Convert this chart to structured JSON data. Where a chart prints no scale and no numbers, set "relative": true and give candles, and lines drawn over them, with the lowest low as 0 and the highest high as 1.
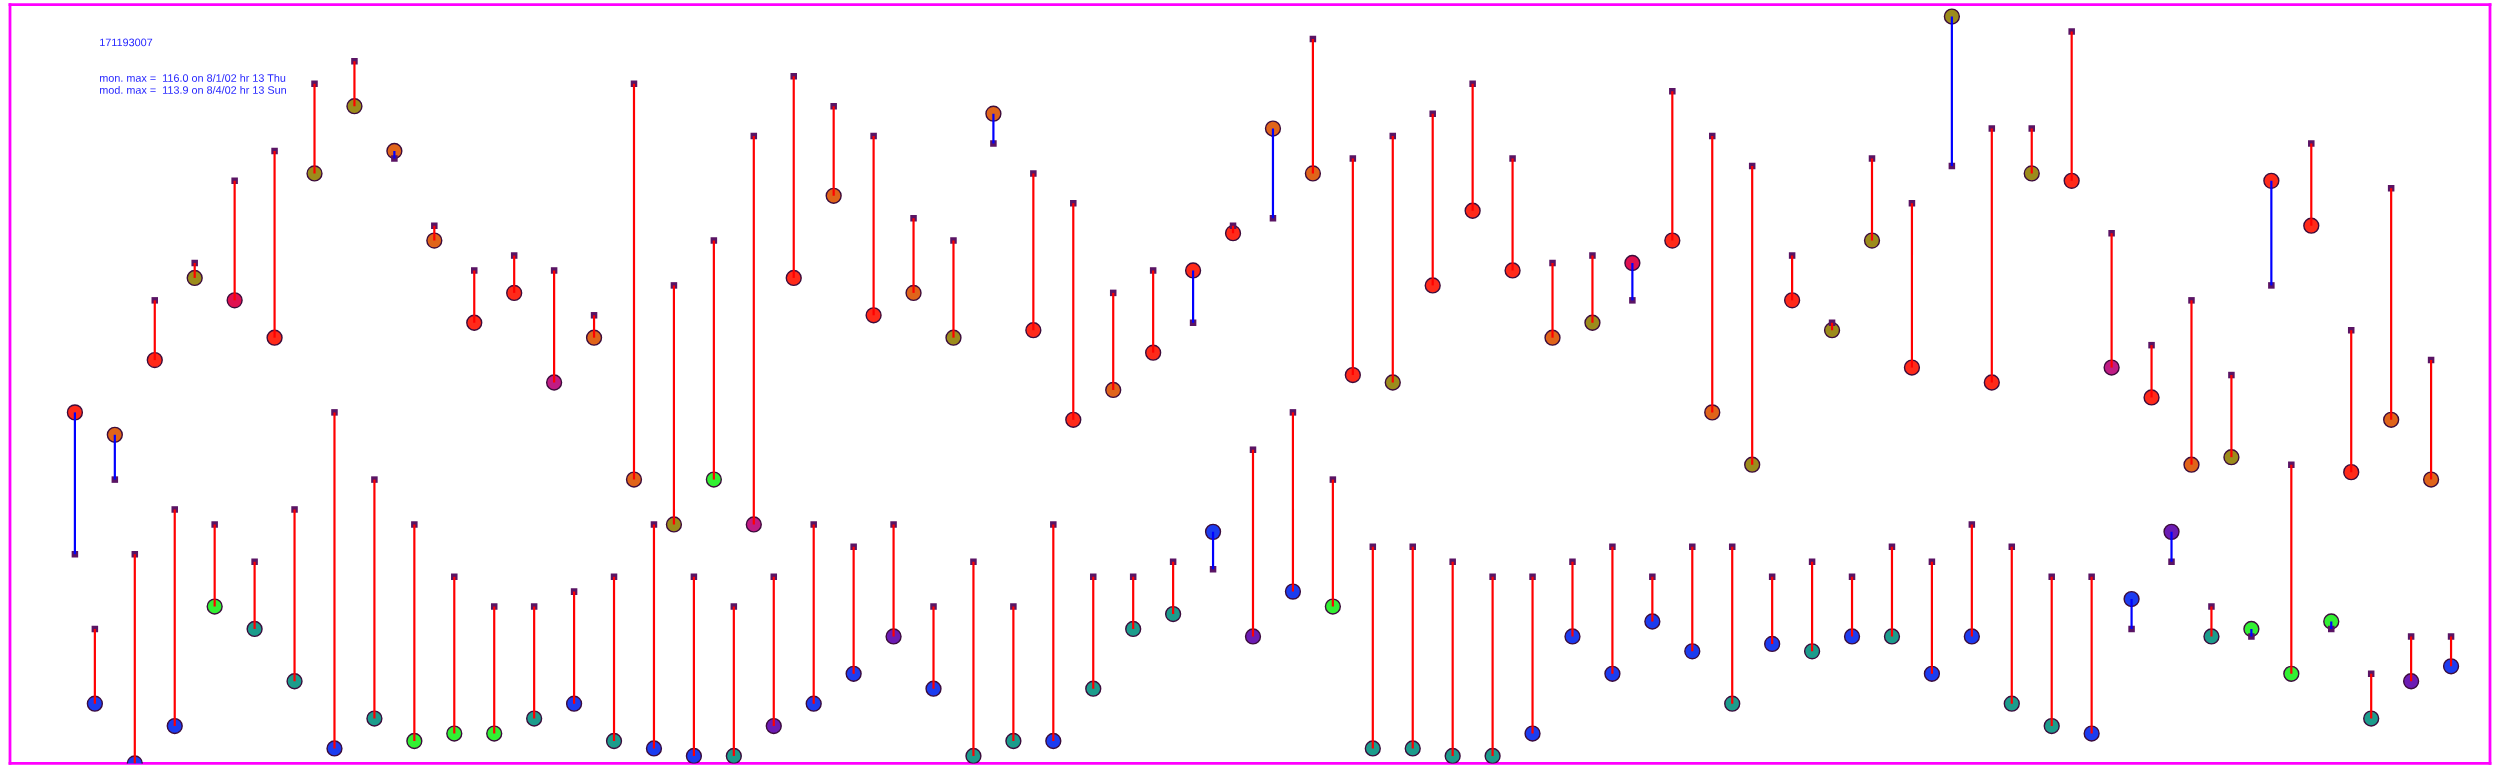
{
  "chart_data": {
    "type": "candlestick",
    "title": "171193007",
    "annotations": [
      "mon. max =  116.0 on 8/1/02 hr 13 Thu",
      "mod. max =  113.9 on 8/4/02 hr 13 Sun"
    ],
    "relative": true,
    "categories": [
      null,
      null,
      null,
      null,
      null,
      null,
      null,
      null,
      null,
      null,
      null,
      null,
      null,
      null,
      null,
      null,
      null,
      null,
      null,
      null,
      null,
      null,
      null,
      null,
      null,
      null,
      null,
      null,
      null,
      null,
      null,
      null,
      null,
      null,
      null,
      null,
      null,
      null,
      null,
      null,
      null,
      null,
      null,
      null,
      null,
      null,
      null,
      null,
      null,
      null,
      null,
      null,
      null,
      null,
      null,
      null,
      null,
      null,
      null,
      null,
      null,
      null,
      null,
      null,
      null,
      null,
      null,
      null,
      null,
      null,
      null,
      null,
      null,
      null,
      null,
      null,
      null,
      null,
      null,
      null,
      null,
      null,
      null,
      null,
      null,
      null,
      null,
      null,
      null,
      null,
      null,
      null,
      null,
      null,
      null,
      null,
      null,
      null,
      null,
      null,
      null,
      null,
      null,
      null,
      null,
      null,
      null,
      null,
      null,
      null,
      null,
      null,
      null,
      null,
      null,
      null,
      null,
      null,
      null,
      null
    ],
    "ohlc": [
      [
        0.47,
        0.47,
        0.28,
        0.28
      ],
      [
        0.08,
        0.18,
        0.08,
        0.18
      ],
      [
        0.44,
        0.44,
        0.38,
        0.38
      ],
      [
        0,
        0.28,
        0,
        0.28
      ],
      [
        0.54,
        0.62,
        0.54,
        0.62
      ],
      [
        0.05,
        0.34,
        0.05,
        0.34
      ],
      [
        0.65,
        0.67,
        0.65,
        0.67
      ],
      [
        0.21,
        0.32,
        0.21,
        0.32
      ],
      [
        0.62,
        0.78,
        0.62,
        0.78
      ],
      [
        0.18,
        0.27,
        0.18,
        0.27
      ],
      [
        0.57,
        0.82,
        0.57,
        0.82
      ],
      [
        0.11,
        0.34,
        0.11,
        0.34
      ],
      [
        0.79,
        0.91,
        0.79,
        0.91
      ],
      [
        0.02,
        0.47,
        0.02,
        0.47
      ],
      [
        0.88,
        0.94,
        0.88,
        0.94
      ],
      [
        0.06,
        0.38,
        0.06,
        0.38
      ],
      [
        0.82,
        0.82,
        0.81,
        0.81
      ],
      [
        0.03,
        0.32,
        0.03,
        0.32
      ],
      [
        0.7,
        0.72,
        0.7,
        0.72
      ],
      [
        0.04,
        0.25,
        0.04,
        0.25
      ],
      [
        0.59,
        0.66,
        0.59,
        0.66
      ],
      [
        0.04,
        0.21,
        0.04,
        0.21
      ],
      [
        0.63,
        0.68,
        0.63,
        0.68
      ],
      [
        0.06,
        0.21,
        0.06,
        0.21
      ],
      [
        0.51,
        0.66,
        0.51,
        0.66
      ],
      [
        0.08,
        0.23,
        0.08,
        0.23
      ],
      [
        0.57,
        0.6,
        0.57,
        0.6
      ],
      [
        0.03,
        0.25,
        0.03,
        0.25
      ],
      [
        0.38,
        0.91,
        0.38,
        0.91
      ],
      [
        0.02,
        0.32,
        0.02,
        0.32
      ],
      [
        0.32,
        0.64,
        0.32,
        0.64
      ],
      [
        0.01,
        0.25,
        0.01,
        0.25
      ],
      [
        0.38,
        0.7,
        0.38,
        0.7
      ],
      [
        0.01,
        0.21,
        0.01,
        0.21
      ],
      [
        0.32,
        0.84,
        0.32,
        0.84
      ],
      [
        0.05,
        0.25,
        0.05,
        0.25
      ],
      [
        0.65,
        0.92,
        0.65,
        0.92
      ],
      [
        0.08,
        0.32,
        0.08,
        0.32
      ],
      [
        0.76,
        0.88,
        0.76,
        0.88
      ],
      [
        0.12,
        0.29,
        0.12,
        0.29
      ],
      [
        0.6,
        0.84,
        0.6,
        0.84
      ],
      [
        0.17,
        0.32,
        0.17,
        0.32
      ],
      [
        0.63,
        0.73,
        0.63,
        0.73
      ],
      [
        0.1,
        0.21,
        0.1,
        0.21
      ],
      [
        0.57,
        0.7,
        0.57,
        0.7
      ],
      [
        0.01,
        0.27,
        0.01,
        0.27
      ],
      [
        0.87,
        0.87,
        0.83,
        0.83
      ],
      [
        0.03,
        0.21,
        0.03,
        0.21
      ],
      [
        0.58,
        0.79,
        0.58,
        0.79
      ],
      [
        0.03,
        0.32,
        0.03,
        0.32
      ],
      [
        0.46,
        0.75,
        0.46,
        0.75
      ],
      [
        0.1,
        0.25,
        0.1,
        0.25
      ],
      [
        0.5,
        0.63,
        0.5,
        0.63
      ],
      [
        0.18,
        0.25,
        0.18,
        0.25
      ],
      [
        0.55,
        0.66,
        0.55,
        0.66
      ],
      [
        0.2,
        0.27,
        0.2,
        0.27
      ],
      [
        0.66,
        0.66,
        0.59,
        0.59
      ],
      [
        0.31,
        0.31,
        0.26,
        0.26
      ],
      [
        0.71,
        0.72,
        0.71,
        0.72
      ],
      [
        0.17,
        0.42,
        0.17,
        0.42
      ],
      [
        0.85,
        0.85,
        0.73,
        0.73
      ],
      [
        0.23,
        0.47,
        0.23,
        0.47
      ],
      [
        0.79,
        0.97,
        0.79,
        0.97
      ],
      [
        0.21,
        0.38,
        0.21,
        0.38
      ],
      [
        0.52,
        0.81,
        0.52,
        0.81
      ],
      [
        0.02,
        0.29,
        0.02,
        0.29
      ],
      [
        0.51,
        0.84,
        0.51,
        0.84
      ],
      [
        0.02,
        0.29,
        0.02,
        0.29
      ],
      [
        0.64,
        0.87,
        0.64,
        0.87
      ],
      [
        0.01,
        0.27,
        0.01,
        0.27
      ],
      [
        0.74,
        0.91,
        0.74,
        0.91
      ],
      [
        0.01,
        0.25,
        0.01,
        0.25
      ],
      [
        0.66,
        0.81,
        0.66,
        0.81
      ],
      [
        0.04,
        0.25,
        0.04,
        0.25
      ],
      [
        0.57,
        0.67,
        0.57,
        0.67
      ],
      [
        0.17,
        0.27,
        0.17,
        0.27
      ],
      [
        0.59,
        0.68,
        0.59,
        0.68
      ],
      [
        0.12,
        0.29,
        0.12,
        0.29
      ],
      [
        0.67,
        0.67,
        0.62,
        0.62
      ],
      [
        0.19,
        0.25,
        0.19,
        0.25
      ],
      [
        0.7,
        0.9,
        0.7,
        0.9
      ],
      [
        0.15,
        0.29,
        0.15,
        0.29
      ],
      [
        0.47,
        0.84,
        0.47,
        0.84
      ],
      [
        0.08,
        0.29,
        0.08,
        0.29
      ],
      [
        0.4,
        0.8,
        0.4,
        0.8
      ],
      [
        0.16,
        0.25,
        0.16,
        0.25
      ],
      [
        0.62,
        0.68,
        0.62,
        0.68
      ],
      [
        0.15,
        0.27,
        0.15,
        0.27
      ],
      [
        0.58,
        0.59,
        0.58,
        0.59
      ],
      [
        0.17,
        0.25,
        0.17,
        0.25
      ],
      [
        0.7,
        0.81,
        0.7,
        0.81
      ],
      [
        0.17,
        0.29,
        0.17,
        0.29
      ],
      [
        0.53,
        0.75,
        0.53,
        0.75
      ],
      [
        0.12,
        0.27,
        0.12,
        0.27
      ],
      [
        1,
        1,
        0.8,
        0.8
      ],
      [
        0.17,
        0.32,
        0.17,
        0.32
      ],
      [
        0.51,
        0.85,
        0.51,
        0.85
      ],
      [
        0.08,
        0.29,
        0.08,
        0.29
      ],
      [
        0.79,
        0.85,
        0.79,
        0.85
      ],
      [
        0.05,
        0.25,
        0.05,
        0.25
      ],
      [
        0.78,
        0.98,
        0.78,
        0.98
      ],
      [
        0.04,
        0.25,
        0.04,
        0.25
      ],
      [
        0.53,
        0.71,
        0.53,
        0.71
      ],
      [
        0.22,
        0.22,
        0.18,
        0.18
      ],
      [
        0.49,
        0.56,
        0.49,
        0.56
      ],
      [
        0.31,
        0.31,
        0.27,
        0.27
      ],
      [
        0.4,
        0.62,
        0.4,
        0.62
      ],
      [
        0.17,
        0.21,
        0.17,
        0.21
      ],
      [
        0.41,
        0.52,
        0.41,
        0.52
      ],
      [
        0.18,
        0.18,
        0.17,
        0.17
      ],
      [
        0.78,
        0.78,
        0.64,
        0.64
      ],
      [
        0.12,
        0.4,
        0.12,
        0.4
      ],
      [
        0.72,
        0.83,
        0.72,
        0.83
      ],
      [
        0.19,
        0.19,
        0.18,
        0.18
      ],
      [
        0.39,
        0.58,
        0.39,
        0.58
      ],
      [
        0.06,
        0.12,
        0.06,
        0.12
      ],
      [
        0.46,
        0.77,
        0.46,
        0.77
      ],
      [
        0.11,
        0.17,
        0.11,
        0.17
      ],
      [
        0.38,
        0.54,
        0.38,
        0.54
      ],
      [
        0.13,
        0.17,
        0.13,
        0.17
      ]
    ],
    "colors": [
      "#0000ff",
      "#ff0000",
      "#0000ff",
      "#ff0000",
      "#ff0000",
      "#ff0000",
      "#ff0000",
      "#ff0000",
      "#ff0000",
      "#ff0000",
      "#ff0000",
      "#ff0000",
      "#ff0000",
      "#ff0000",
      "#ff0000",
      "#ff0000",
      "#0000ff",
      "#ff0000",
      "#ff0000",
      "#ff0000",
      "#ff0000",
      "#ff0000",
      "#ff0000",
      "#ff0000",
      "#ff0000",
      "#ff0000",
      "#ff0000",
      "#ff0000",
      "#ff0000",
      "#ff0000",
      "#ff0000",
      "#ff0000",
      "#ff0000",
      "#ff0000",
      "#ff0000",
      "#ff0000",
      "#ff0000",
      "#ff0000",
      "#ff0000",
      "#ff0000",
      "#ff0000",
      "#ff0000",
      "#ff0000",
      "#ff0000",
      "#ff0000",
      "#ff0000",
      "#0000ff",
      "#ff0000",
      "#ff0000",
      "#ff0000",
      "#ff0000",
      "#ff0000",
      "#ff0000",
      "#ff0000",
      "#ff0000",
      "#ff0000",
      "#0000ff",
      "#0000ff",
      "#ff0000",
      "#ff0000",
      "#0000ff",
      "#ff0000",
      "#ff0000",
      "#ff0000",
      "#ff0000",
      "#ff0000",
      "#ff0000",
      "#ff0000",
      "#ff0000",
      "#ff0000",
      "#ff0000",
      "#ff0000",
      "#ff0000",
      "#ff0000",
      "#ff0000",
      "#ff0000",
      "#ff0000",
      "#ff0000",
      "#0000ff",
      "#ff0000",
      "#ff0000",
      "#ff0000",
      "#ff0000",
      "#ff0000",
      "#ff0000",
      "#ff0000",
      "#ff0000",
      "#ff0000",
      "#ff0000",
      "#ff0000",
      "#ff0000",
      "#ff0000",
      "#ff0000",
      "#ff0000",
      "#0000ff",
      "#ff0000",
      "#ff0000",
      "#ff0000",
      "#ff0000",
      "#ff0000",
      "#ff0000",
      "#ff0000",
      "#ff0000",
      "#0000ff",
      "#ff0000",
      "#0000ff",
      "#ff0000",
      "#ff0000",
      "#ff0000",
      "#0000ff",
      "#0000ff",
      "#ff0000",
      "#ff0000",
      "#0000ff",
      "#ff0000",
      "#ff0000",
      "#ff0000",
      "#ff0000",
      "#ff0000",
      "#ff0000"
    ],
    "series": [
      {
        "type": "scatter",
        "marker": "circle",
        "values": [
          0.47,
          0.08,
          0.44,
          0,
          0.54,
          0.05,
          0.65,
          0.21,
          0.62,
          0.18,
          0.57,
          0.11,
          0.79,
          0.02,
          0.88,
          0.06,
          0.82,
          0.03,
          0.7,
          0.04,
          0.59,
          0.04,
          0.63,
          0.06,
          0.51,
          0.08,
          0.57,
          0.03,
          0.38,
          0.02,
          0.32,
          0.01,
          0.38,
          0.01,
          0.32,
          0.05,
          0.65,
          0.08,
          0.76,
          0.12,
          0.6,
          0.17,
          0.63,
          0.1,
          0.57,
          0.01,
          0.87,
          0.03,
          0.58,
          0.03,
          0.46,
          0.1,
          0.5,
          0.18,
          0.55,
          0.2,
          0.66,
          0.31,
          0.71,
          0.17,
          0.85,
          0.23,
          0.79,
          0.21,
          0.52,
          0.02,
          0.51,
          0.02,
          0.64,
          0.01,
          0.74,
          0.01,
          0.66,
          0.04,
          0.57,
          0.17,
          0.59,
          0.12,
          0.67,
          0.19,
          0.7,
          0.15,
          0.47,
          0.08,
          0.4,
          0.16,
          0.62,
          0.15,
          0.58,
          0.17,
          0.7,
          0.17,
          0.53,
          0.12,
          1,
          0.17,
          0.51,
          0.08,
          0.79,
          0.05,
          0.78,
          0.04,
          0.53,
          0.22,
          0.49,
          0.31,
          0.4,
          0.17,
          0.41,
          0.18,
          0.78,
          0.12,
          0.72,
          0.19,
          0.39,
          0.06,
          0.46,
          0.11,
          0.38,
          0.13
        ],
        "colors": [
          "#ff2a1a",
          "#1c3cf0",
          "#e0641a",
          "#1c3cf0",
          "#ff2a1a",
          "#1c3cf0",
          "#9c8c1c",
          "#33f033",
          "#e01050",
          "#1c9c8c",
          "#ff2a1a",
          "#1c9c8c",
          "#9c8c1c",
          "#1c3cf0",
          "#9c8c1c",
          "#1c9c8c",
          "#e0641a",
          "#33f033",
          "#e0641a",
          "#33f033",
          "#ff2a1a",
          "#33f033",
          "#ff2a1a",
          "#1c9c8c",
          "#c01c84",
          "#1c3cf0",
          "#e0641a",
          "#1c9c8c",
          "#e0641a",
          "#1c3cf0",
          "#9c8c1c",
          "#1c3cf0",
          "#33f033",
          "#1c9c8c",
          "#c01c84",
          "#6c1cb4",
          "#ff2a1a",
          "#1c3cf0",
          "#e0641a",
          "#1c3cf0",
          "#ff2a1a",
          "#6c1cb4",
          "#e0641a",
          "#1c3cf0",
          "#9c8c1c",
          "#1c9c8c",
          "#e0641a",
          "#1c9c8c",
          "#ff2a1a",
          "#1c3cf0",
          "#ff2a1a",
          "#1c9c8c",
          "#e0641a",
          "#1c9c8c",
          "#ff2a1a",
          "#1c9c8c",
          "#ff2a1a",
          "#1c3cf0",
          "#ff2a1a",
          "#6c1cb4",
          "#e0641a",
          "#1c3cf0",
          "#e0641a",
          "#33f033",
          "#ff2a1a",
          "#1c9c8c",
          "#9c8c1c",
          "#1c9c8c",
          "#ff2a1a",
          "#1c9c8c",
          "#ff2a1a",
          "#1c9c8c",
          "#ff2a1a",
          "#1c3cf0",
          "#e0641a",
          "#1c3cf0",
          "#9c8c1c",
          "#1c3cf0",
          "#e01050",
          "#1c3cf0",
          "#ff2a1a",
          "#1c3cf0",
          "#e0641a",
          "#1c9c8c",
          "#9c8c1c",
          "#1c3cf0",
          "#ff2a1a",
          "#1c9c8c",
          "#9c8c1c",
          "#1c3cf0",
          "#9c8c1c",
          "#1c9c8c",
          "#ff2a1a",
          "#1c3cf0",
          "#9c8c1c",
          "#1c3cf0",
          "#ff2a1a",
          "#1c9c8c",
          "#9c8c1c",
          "#1c9c8c",
          "#ff2a1a",
          "#1c3cf0",
          "#c01c84",
          "#1c3cf0",
          "#ff2a1a",
          "#6c1cb4",
          "#e0641a",
          "#1c9c8c",
          "#9c8c1c",
          "#33f033",
          "#ff2a1a",
          "#33f033",
          "#ff2a1a",
          "#33f033",
          "#ff2a1a",
          "#1c9c8c",
          "#e0641a",
          "#6c1cb4",
          "#e0641a",
          "#1c3cf0"
        ]
      },
      {
        "type": "scatter",
        "marker": "square",
        "color": "#5a1464",
        "values": [
          0.28,
          0.18,
          0.38,
          0.28,
          0.62,
          0.34,
          0.67,
          0.32,
          0.78,
          0.27,
          0.82,
          0.34,
          0.91,
          0.47,
          0.94,
          0.38,
          0.81,
          0.32,
          0.72,
          0.25,
          0.66,
          0.21,
          0.68,
          0.21,
          0.66,
          0.23,
          0.6,
          0.25,
          0.91,
          0.32,
          0.64,
          0.25,
          0.7,
          0.21,
          0.84,
          0.25,
          0.92,
          0.32,
          0.88,
          0.29,
          0.84,
          0.32,
          0.73,
          0.21,
          0.7,
          0.27,
          0.83,
          0.21,
          0.79,
          0.32,
          0.75,
          0.25,
          0.63,
          0.25,
          0.66,
          0.27,
          0.59,
          0.26,
          0.72,
          0.42,
          0.73,
          0.47,
          0.97,
          0.38,
          0.81,
          0.29,
          0.84,
          0.29,
          0.87,
          0.27,
          0.91,
          0.25,
          0.81,
          0.25,
          0.67,
          0.27,
          0.68,
          0.29,
          0.62,
          0.25,
          0.9,
          0.29,
          0.84,
          0.29,
          0.8,
          0.25,
          0.68,
          0.27,
          0.59,
          0.25,
          0.81,
          0.29,
          0.75,
          0.27,
          0.8,
          0.32,
          0.85,
          0.29,
          0.85,
          0.25,
          0.98,
          0.25,
          0.71,
          0.18,
          0.56,
          0.27,
          0.62,
          0.21,
          0.52,
          0.17,
          0.64,
          0.4,
          0.83,
          0.18,
          0.58,
          0.12,
          0.77,
          0.17,
          0.54,
          0.17
        ]
      }
    ]
  }
}
